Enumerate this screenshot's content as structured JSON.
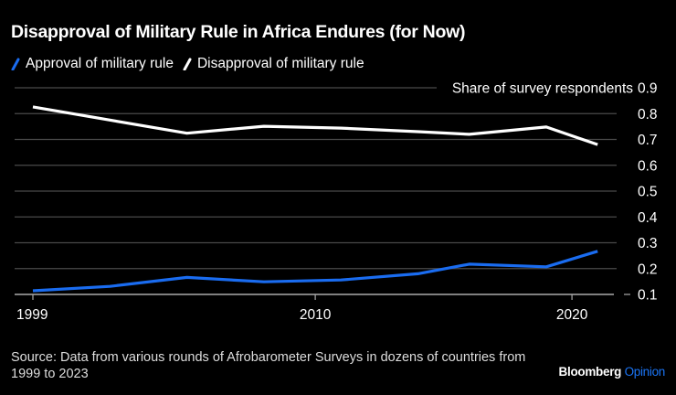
{
  "title": "Disapproval of Military Rule in Africa Endures (for Now)",
  "legend": [
    {
      "label": "Approval of military rule",
      "color": "#1a6cf0"
    },
    {
      "label": "Disapproval of military rule",
      "color": "#ffffff"
    }
  ],
  "source": "Source: Data from various rounds of Afrobarometer Surveys in dozens of countries from 1999 to 2023",
  "brand": {
    "name": "Bloomberg",
    "suffix": "Opinion",
    "suffix_color": "#1a74f5"
  },
  "chart_data": {
    "type": "line",
    "title": "Disapproval of Military Rule in Africa Endures (for Now)",
    "xlabel": "",
    "ylabel": "Share of survey respondents",
    "x": [
      1999,
      2002,
      2005,
      2008,
      2011,
      2014,
      2016,
      2019,
      2021
    ],
    "series": [
      {
        "name": "Approval of military rule",
        "color": "#1a6cf0",
        "values": [
          0.114,
          0.131,
          0.166,
          0.149,
          0.156,
          0.18,
          0.217,
          0.207,
          0.267
        ]
      },
      {
        "name": "Disapproval of military rule",
        "color": "#ffffff",
        "values": [
          0.826,
          0.775,
          0.724,
          0.751,
          0.744,
          0.73,
          0.72,
          0.748,
          0.68
        ]
      }
    ],
    "xlim": [
      1999,
      2022
    ],
    "ylim": [
      0.1,
      0.9
    ],
    "x_ticks": [
      1999,
      2010,
      2020
    ],
    "x_tick_labels": [
      "1999",
      "2010",
      "2020"
    ],
    "y_ticks": [
      0.1,
      0.2,
      0.3,
      0.4,
      0.5,
      0.6,
      0.7,
      0.8,
      0.9
    ],
    "y_tick_labels": [
      "0.1",
      "0.2",
      "0.3",
      "0.4",
      "0.5",
      "0.6",
      "0.7",
      "0.8",
      "0.9"
    ],
    "grid": true,
    "y_axis_side": "right",
    "legend_position": "top-left"
  }
}
